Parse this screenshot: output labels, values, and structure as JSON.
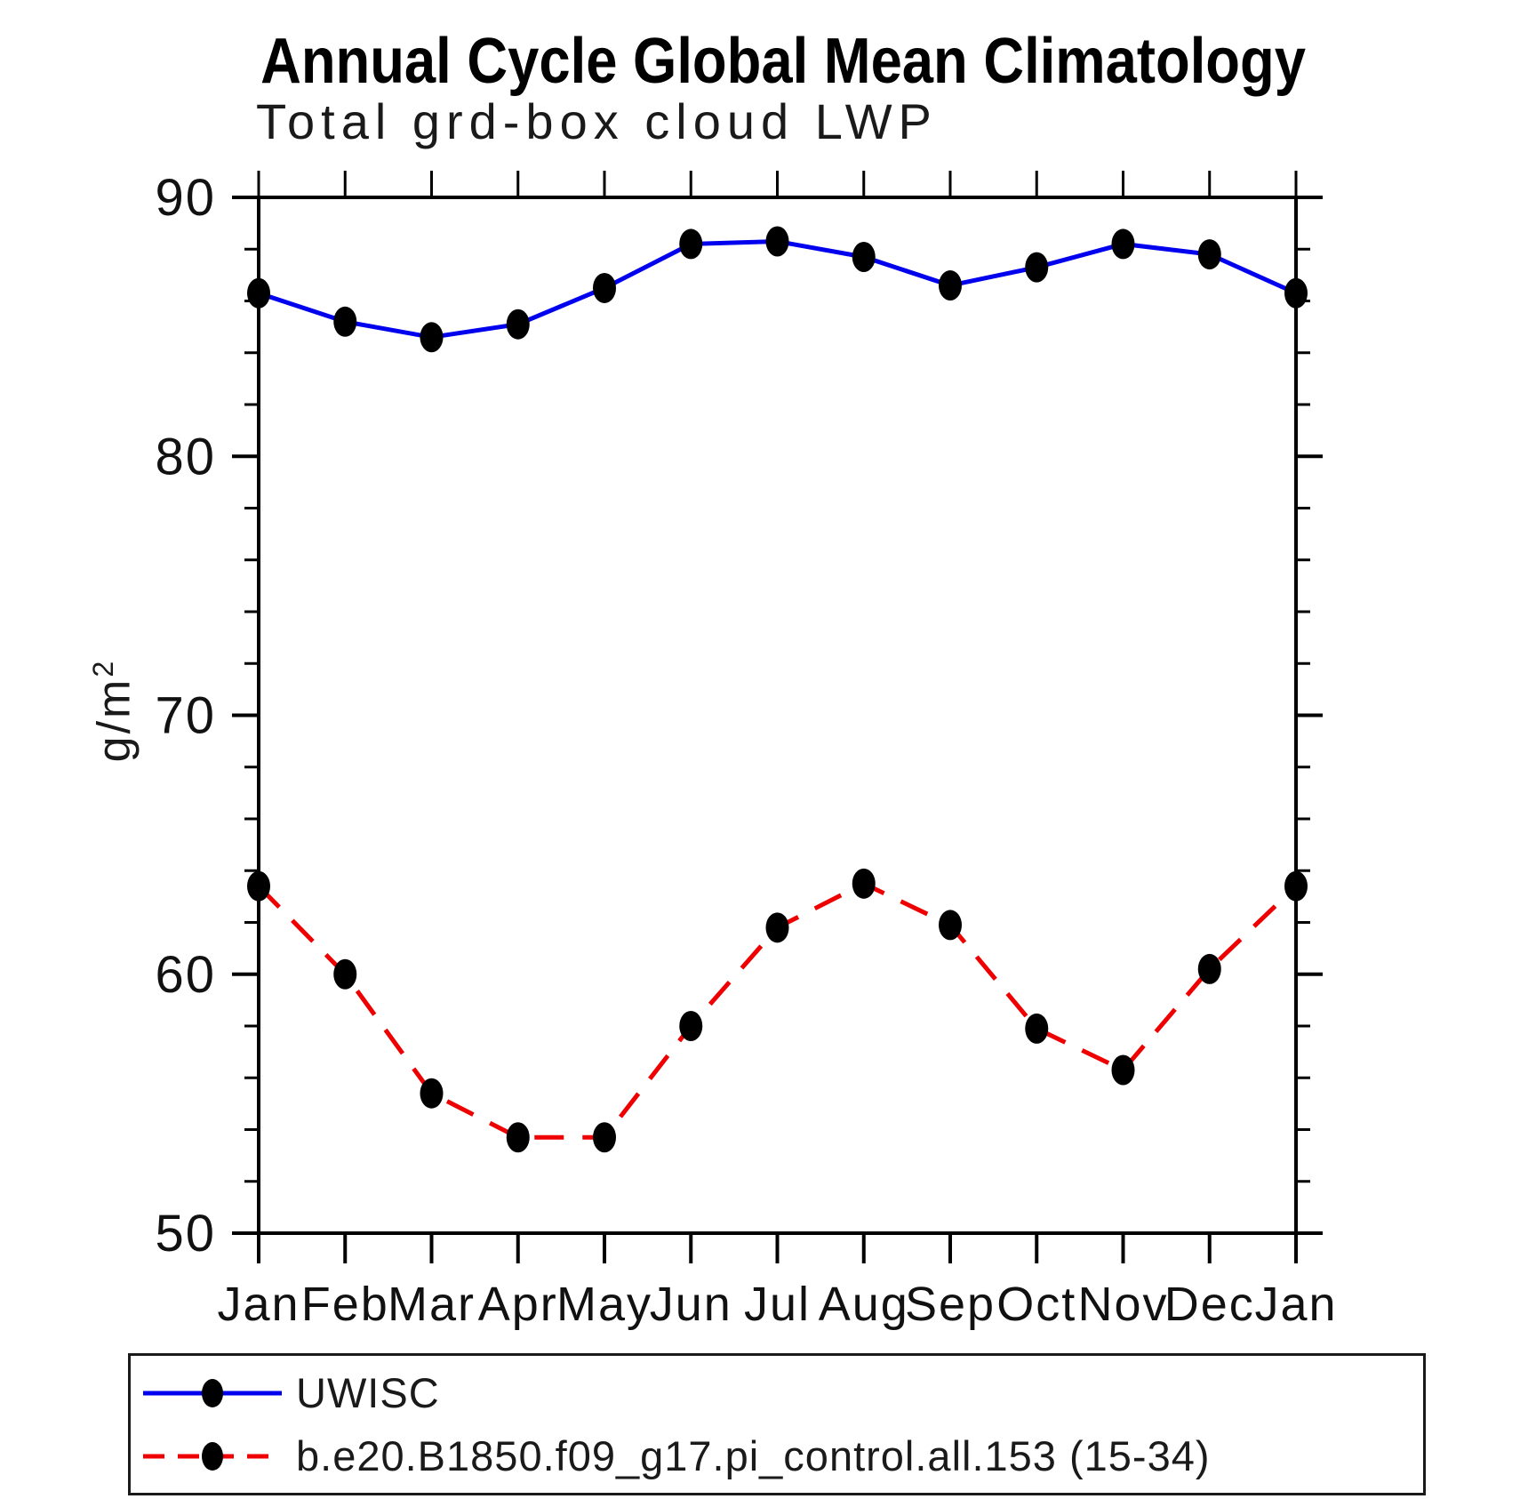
{
  "chart_data": {
    "type": "line",
    "title": "Annual Cycle Global Mean Climatology",
    "subtitle": "Total grd-box cloud LWP",
    "ylabel": "g/m²",
    "ylabel_base": "g/m",
    "ylabel_exponent": "2",
    "ylim": [
      50,
      90
    ],
    "ytick_major": [
      90,
      80,
      70,
      60,
      50
    ],
    "ytick_minor_step": 2,
    "categories": [
      "Jan",
      "Feb",
      "Mar",
      "Apr",
      "May",
      "Jun",
      "Jul",
      "Aug",
      "Sep",
      "Oct",
      "Nov",
      "Dec",
      "Jan"
    ],
    "grid": false,
    "frame_ticks": "outward",
    "legend_position": "bottom",
    "marker": "filled-circle",
    "marker_color": "#000000",
    "series": [
      {
        "name": "UWISC",
        "color": "#0000ee",
        "line_style": "solid",
        "values": [
          86.3,
          85.2,
          84.6,
          85.1,
          86.5,
          88.2,
          88.3,
          87.7,
          86.6,
          87.3,
          88.2,
          87.8,
          86.3
        ]
      },
      {
        "name": "b.e20.B1850.f09_g17.pi_control.all.153 (15-34)",
        "color": "#ee0000",
        "line_style": "dashed",
        "values": [
          63.4,
          60.0,
          55.4,
          53.7,
          53.7,
          58.0,
          61.8,
          63.5,
          61.9,
          57.9,
          56.3,
          60.2,
          63.4
        ]
      }
    ]
  }
}
